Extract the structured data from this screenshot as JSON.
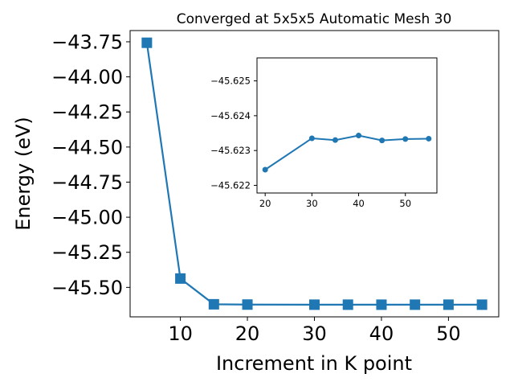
{
  "chart_data": [
    {
      "type": "line",
      "title": "Converged at 5x5x5 Automatic Mesh 30",
      "xlabel": "Increment in K point",
      "ylabel": "Energy (eV)",
      "x": [
        5,
        10,
        15,
        20,
        30,
        35,
        40,
        45,
        50,
        55
      ],
      "series": [
        {
          "values": [
            -43.757,
            -45.437,
            -45.6205,
            -45.6225,
            -45.62335,
            -45.6233,
            -45.62343,
            -45.62329,
            -45.62333,
            -45.62334
          ]
        }
      ],
      "xlim": [
        2.5,
        57.5
      ],
      "ylim": [
        -45.71,
        -43.67
      ],
      "xticks": [
        10,
        20,
        30,
        40,
        50
      ],
      "xtick_labels": [
        "10",
        "20",
        "30",
        "40",
        "50"
      ],
      "yticks": [
        -43.75,
        -44.0,
        -44.25,
        -44.5,
        -44.75,
        -45.0,
        -45.25,
        -45.5
      ],
      "ytick_labels": [
        "−43.75",
        "−44.00",
        "−44.25",
        "−44.50",
        "−44.75",
        "−45.00",
        "−45.25",
        "−45.50"
      ],
      "marker": "square",
      "color": "#1f77b4",
      "grid": false
    },
    {
      "type": "line",
      "title": "",
      "x": [
        20,
        30,
        35,
        40,
        45,
        50,
        55
      ],
      "series": [
        {
          "values": [
            -45.62245,
            -45.62335,
            -45.6233,
            -45.62343,
            -45.62329,
            -45.62333,
            -45.62334
          ]
        }
      ],
      "xlim": [
        18.25,
        56.75
      ],
      "ylim": [
        -45.62178,
        -45.62566
      ],
      "y_inverted": true,
      "xticks": [
        20,
        30,
        40,
        50
      ],
      "xtick_labels": [
        "20",
        "30",
        "40",
        "50"
      ],
      "yticks": [
        -45.625,
        -45.624,
        -45.623,
        -45.622
      ],
      "ytick_labels": [
        "−45.625",
        "−45.624",
        "−45.623",
        "−45.622"
      ],
      "marker": "circle",
      "color": "#1f77b4",
      "grid": false
    }
  ]
}
